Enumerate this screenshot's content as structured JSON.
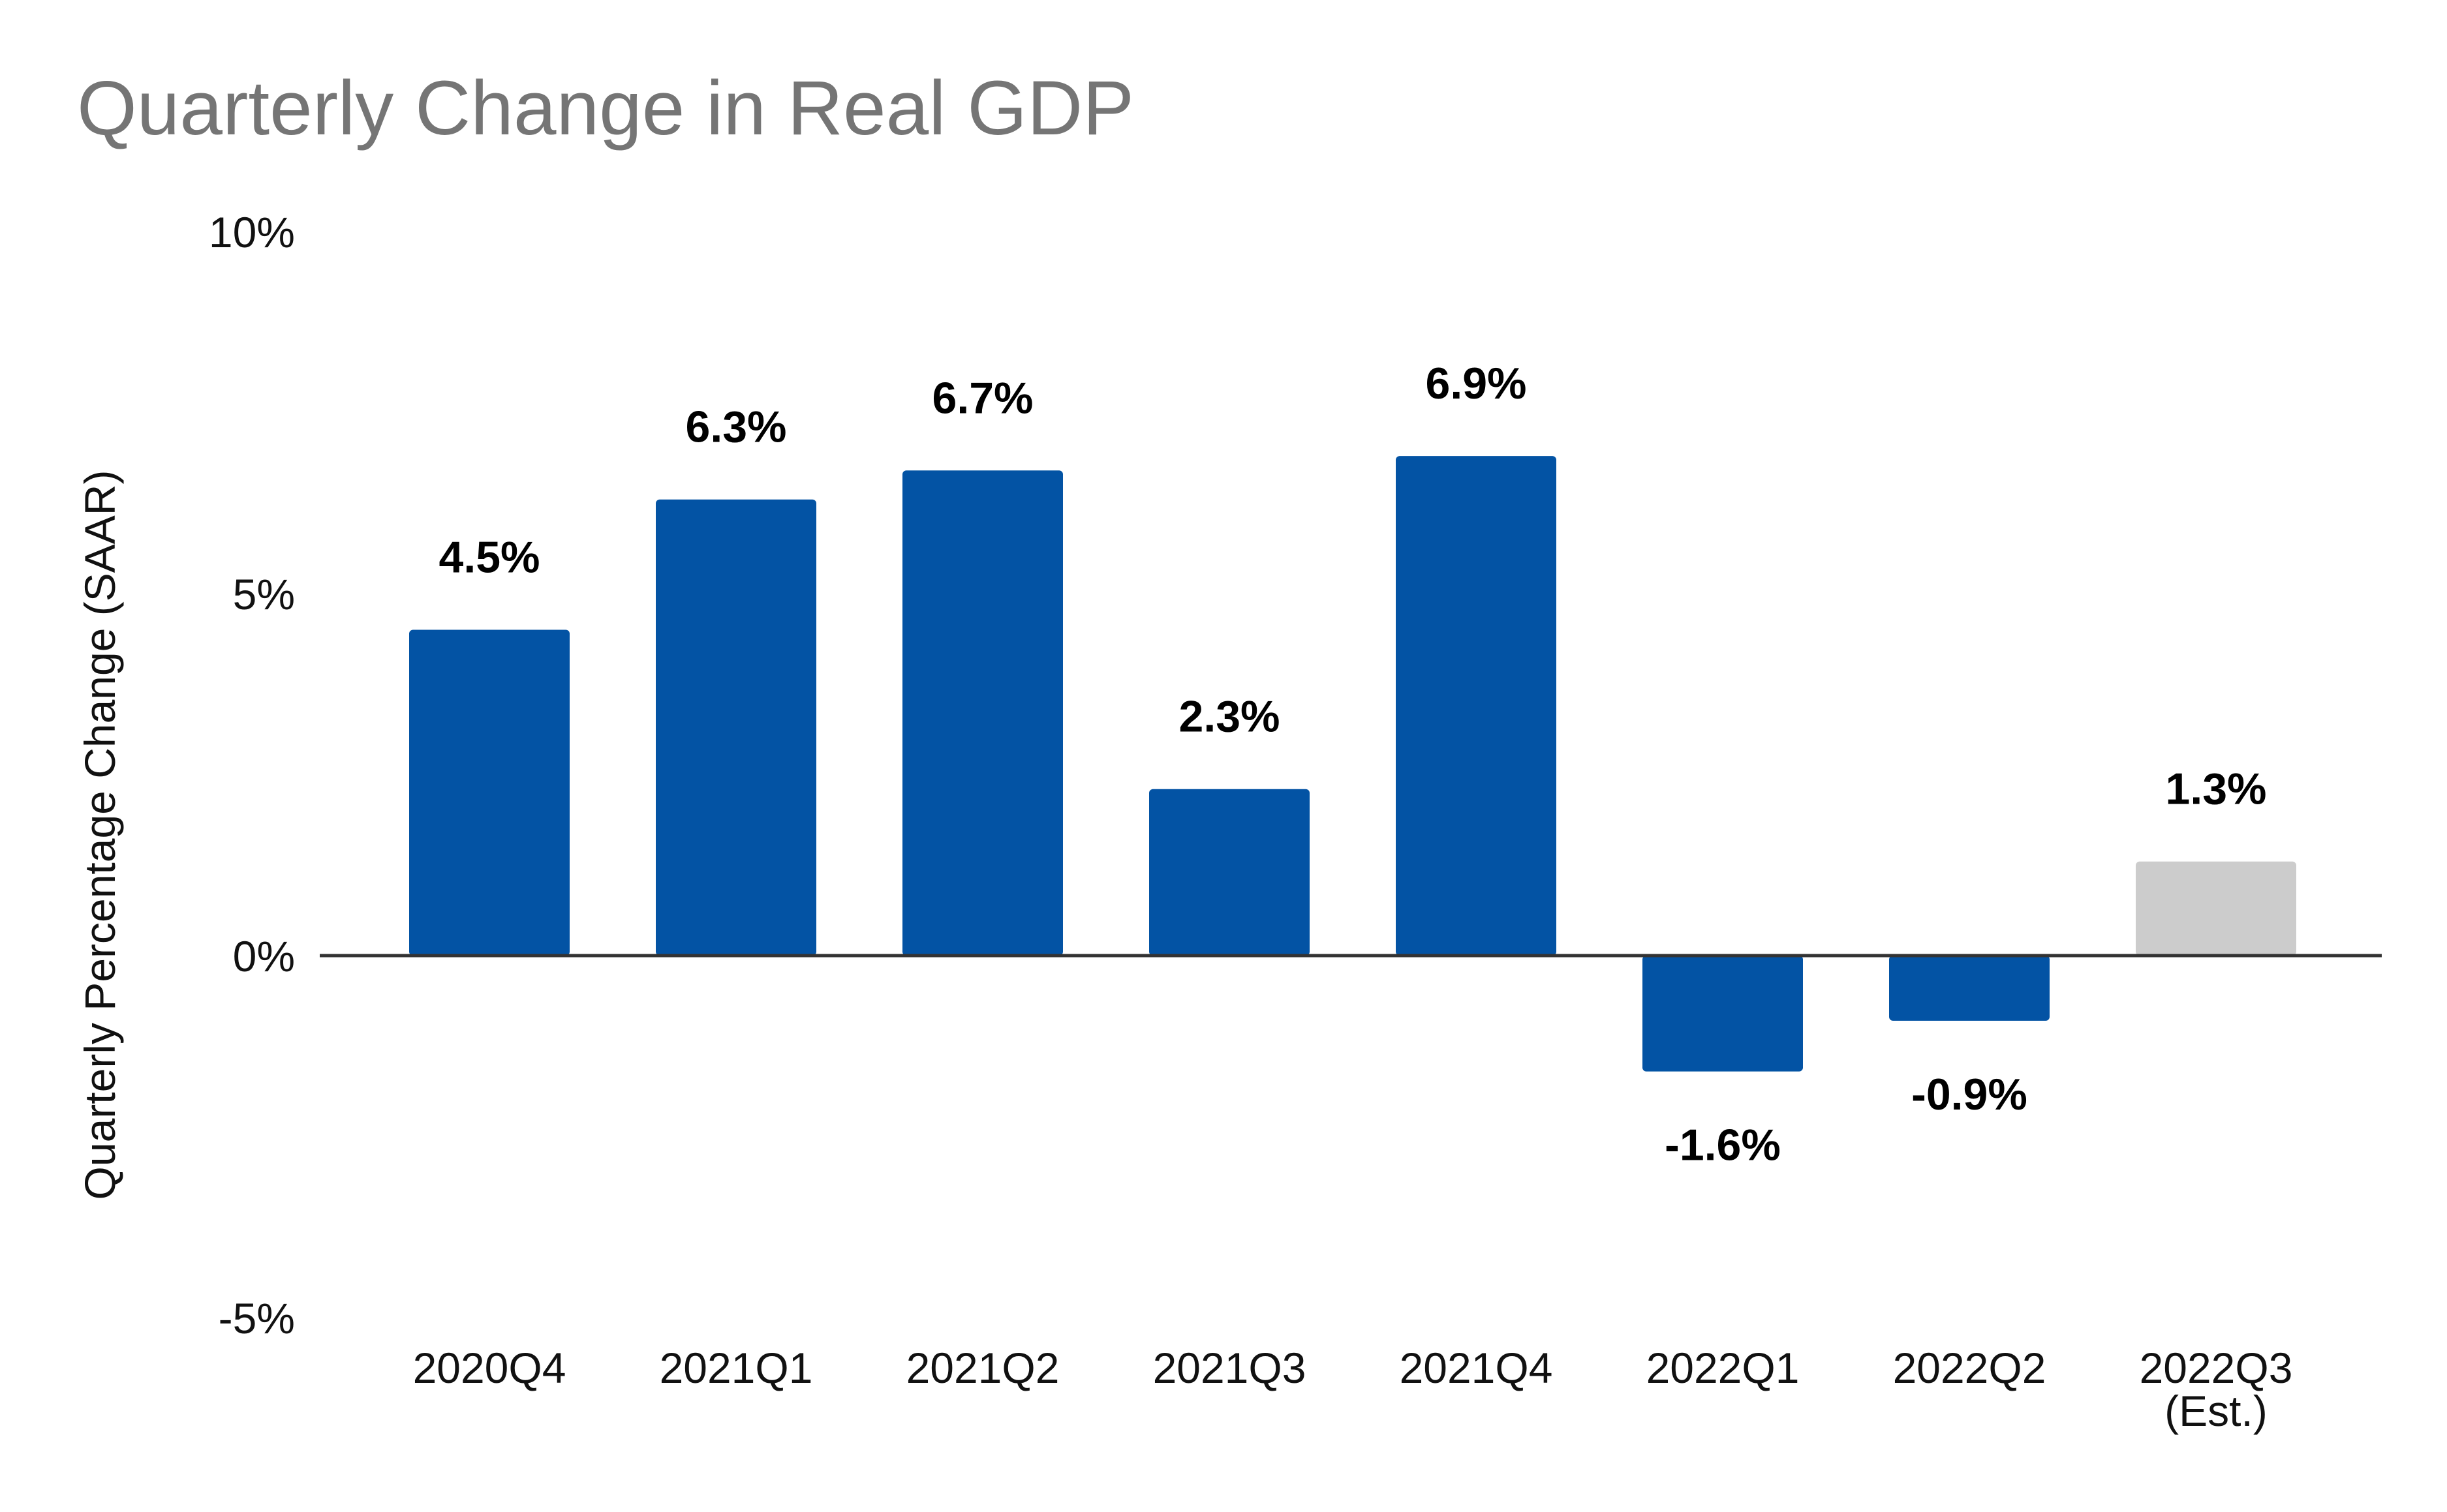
{
  "chart_data": {
    "type": "bar",
    "title": "Quarterly Change in Real GDP",
    "ylabel": "Quarterly Percentage Change (SAAR)",
    "xlabel": "",
    "ylim": [
      -5,
      10
    ],
    "yticks": [
      {
        "value": 10,
        "label": "10%"
      },
      {
        "value": 5,
        "label": "5%"
      },
      {
        "value": 0,
        "label": "0%"
      },
      {
        "value": -5,
        "label": "-5%"
      }
    ],
    "categories": [
      [
        "2020Q4"
      ],
      [
        "2021Q1"
      ],
      [
        "2021Q2"
      ],
      [
        "2021Q3"
      ],
      [
        "2021Q4"
      ],
      [
        "2022Q1"
      ],
      [
        "2022Q2"
      ],
      [
        "2022Q3",
        "(Est.)"
      ]
    ],
    "values": [
      4.5,
      6.3,
      6.7,
      2.3,
      6.9,
      -1.6,
      -0.9,
      1.3
    ],
    "data_labels": [
      "4.5%",
      "6.3%",
      "6.7%",
      "2.3%",
      "6.9%",
      "-1.6%",
      "-0.9%",
      "1.3%"
    ],
    "bar_colors": [
      "#0353a4",
      "#0353a4",
      "#0353a4",
      "#0353a4",
      "#0353a4",
      "#0353a4",
      "#0353a4",
      "#cccccc"
    ],
    "grid": false,
    "legend": "none"
  }
}
